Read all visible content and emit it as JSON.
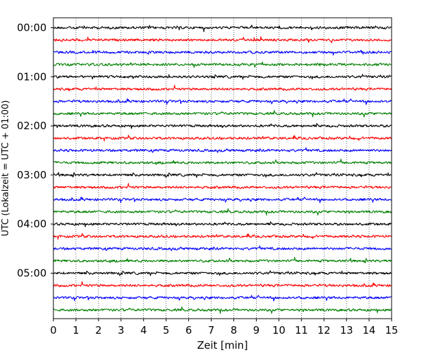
{
  "chart_data": {
    "type": "line",
    "title": "",
    "xlabel": "Zeit  [min]",
    "ylabel": "UTC (Lokalzeit = UTC + 01:00)",
    "xlim": [
      0,
      15
    ],
    "x_ticks": [
      "0",
      "1",
      "2",
      "3",
      "4",
      "5",
      "6",
      "7",
      "8",
      "9",
      "10",
      "11",
      "12",
      "13",
      "14",
      "15"
    ],
    "y_ticks": [
      {
        "label": "00:00",
        "trace": 0
      },
      {
        "label": "01:00",
        "trace": 4
      },
      {
        "label": "02:00",
        "trace": 8
      },
      {
        "label": "03:00",
        "trace": 12
      },
      {
        "label": "04:00",
        "trace": 16
      },
      {
        "label": "05:00",
        "trace": 20
      }
    ],
    "grid": {
      "x": true,
      "y": false,
      "style": "dotted"
    },
    "trace_interval_min": 15,
    "trace_count": 24,
    "trace_colors": [
      "#000000",
      "#ff0000",
      "#0000ff",
      "#008000"
    ],
    "trace_start_times": [
      "00:00",
      "00:15",
      "00:30",
      "00:45",
      "01:00",
      "01:15",
      "01:30",
      "01:45",
      "02:00",
      "02:15",
      "02:30",
      "02:45",
      "03:00",
      "03:15",
      "03:30",
      "03:45",
      "04:00",
      "04:15",
      "04:30",
      "04:45",
      "05:00",
      "05:15",
      "05:30",
      "05:45"
    ]
  }
}
